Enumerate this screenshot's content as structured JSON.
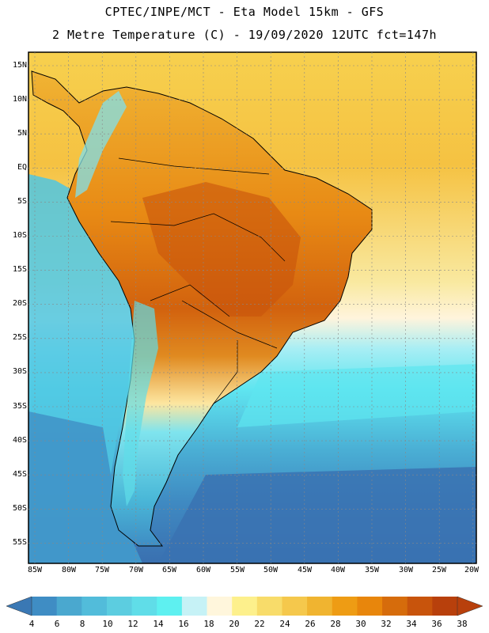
{
  "header": {
    "line1": "CPTEC/INPE/MCT -  Eta Model 15km - GFS",
    "line2": "2 Metre Temperature (C) - 19/09/2020 12UTC fct=147h"
  },
  "axes": {
    "lat_labels": [
      "15N",
      "10N",
      "5N",
      "EQ",
      "5S",
      "10S",
      "15S",
      "20S",
      "25S",
      "30S",
      "35S",
      "40S",
      "45S",
      "50S",
      "55S"
    ],
    "lon_labels": [
      "85W",
      "80W",
      "75W",
      "70W",
      "65W",
      "60W",
      "55W",
      "50W",
      "45W",
      "40W",
      "35W",
      "30W",
      "25W",
      "20W"
    ]
  },
  "colorbar": {
    "labels": [
      "4",
      "6",
      "8",
      "10",
      "12",
      "14",
      "16",
      "18",
      "20",
      "22",
      "24",
      "26",
      "28",
      "30",
      "32",
      "34",
      "36",
      "38"
    ],
    "low_color": "#3a78b4",
    "high_color": "#b8400c",
    "colors": [
      "#3a78b4",
      "#3f8dc4",
      "#4aa8cf",
      "#52bcda",
      "#5ccde0",
      "#60dde8",
      "#5ef0f0",
      "#c6f2f6",
      "#fff6dc",
      "#fdf08c",
      "#f8dc6a",
      "#f5c84c",
      "#f0b430",
      "#ee9c14",
      "#e8860c",
      "#d66c0c",
      "#c8540c",
      "#b8400c"
    ]
  },
  "colors": {
    "ocean_warm": "#f6c84a",
    "ocean_cool": "#5fdff0",
    "ocean_cold": "#3a6fb0",
    "land_hot": "#c8540c",
    "coast": "#000000"
  }
}
